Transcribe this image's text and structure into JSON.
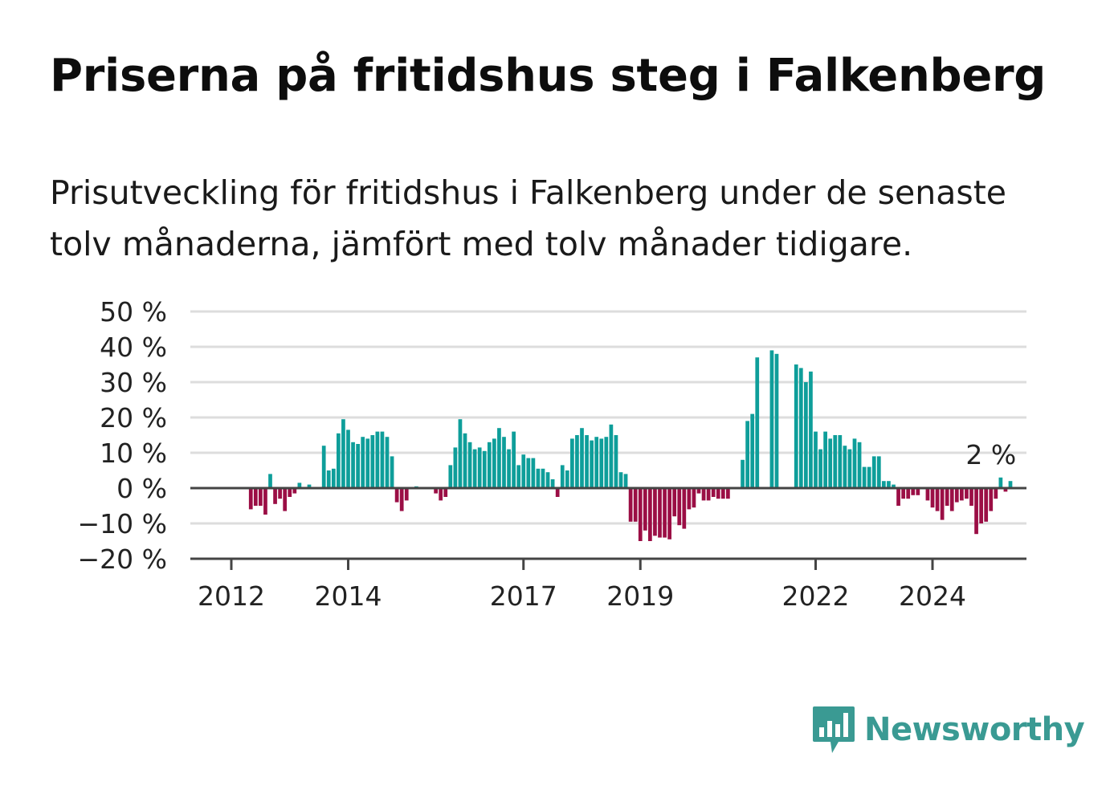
{
  "title": "Priserna på fritidshus steg i Falkenberg",
  "subtitle": "Prisutveckling för fritidshus i Falkenberg under de senaste tolv månaderna, jämfört med tolv månader tidigare.",
  "brand": {
    "name": "Newsworthy",
    "icon": "newsworthy-bar-chart-icon",
    "color": "#3a9a93"
  },
  "colors": {
    "positive": "#0e9e9a",
    "negative": "#9b0e45",
    "grid": "#dddddd",
    "axis": "#444444"
  },
  "chart_data": {
    "type": "bar",
    "x_start": "2011-07",
    "x_step": "month",
    "ylim": [
      -20,
      50
    ],
    "yticks": [
      50,
      40,
      30,
      20,
      10,
      0,
      -10,
      -20
    ],
    "ytick_labels": [
      "50 %",
      "40 %",
      "30 %",
      "20 %",
      "10 %",
      "0 %",
      "−10 %",
      "−20 %"
    ],
    "xticks": [
      "2012",
      "2014",
      "2017",
      "2019",
      "2022",
      "2024"
    ],
    "annotation": {
      "text": "2 %",
      "x": "2025-01"
    },
    "grid": true,
    "values": [
      null,
      null,
      null,
      null,
      null,
      null,
      null,
      null,
      null,
      null,
      -6,
      -5,
      -5,
      -7.5,
      4,
      -4.5,
      -3,
      -6.5,
      -2.5,
      -1.5,
      1.5,
      0.3,
      1,
      0,
      0,
      12,
      5,
      5.5,
      15.5,
      19.5,
      16.5,
      13,
      12.5,
      14.5,
      14,
      15,
      16,
      16,
      14.5,
      9,
      -4,
      -6.5,
      -3.5,
      0,
      0.5,
      0,
      0,
      0,
      -1.5,
      -3.5,
      -2.5,
      6.5,
      11.5,
      19.5,
      15.5,
      13,
      11,
      11.5,
      10.5,
      13,
      14,
      17,
      14.5,
      11,
      16,
      6.5,
      9.5,
      8.5,
      8.5,
      5.5,
      5.5,
      4.5,
      2.5,
      -2.5,
      6.5,
      5,
      14,
      15,
      17,
      15,
      13.5,
      14.5,
      14,
      14.5,
      18,
      15,
      4.5,
      4,
      -9.5,
      -9.5,
      -15,
      -12,
      -15,
      -13.5,
      -14,
      -14,
      -14.5,
      -8,
      -10.5,
      -11.5,
      -6,
      -5.5,
      -1.5,
      -3.5,
      -3.5,
      -2.5,
      -3,
      -3,
      -3,
      null,
      null,
      8,
      19,
      21,
      37,
      null,
      null,
      39,
      38,
      null,
      null,
      null,
      35,
      34,
      30,
      33,
      16,
      11,
      16,
      14,
      15,
      15,
      12,
      11,
      14,
      13,
      6,
      6,
      9,
      9,
      2,
      2,
      1,
      -5,
      -3,
      -3,
      -2,
      -2,
      0,
      -3.5,
      -5.5,
      -6.5,
      -9,
      -5,
      -6.5,
      -4,
      -3.5,
      -3,
      -5,
      -13,
      -10,
      -9.5,
      -6.5,
      -3,
      3,
      -1,
      2
    ]
  }
}
